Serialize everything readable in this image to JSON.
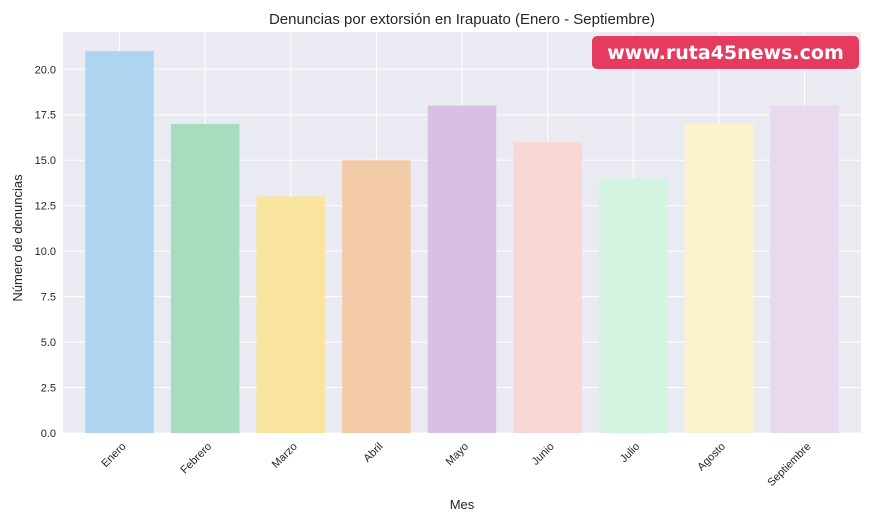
{
  "chart_data": {
    "type": "bar",
    "title": "Denuncias por extorsión en Irapuato (Enero - Septiembre)",
    "xlabel": "Mes",
    "ylabel": "Número de denuncias",
    "categories": [
      "Enero",
      "Febrero",
      "Marzo",
      "Abril",
      "Mayo",
      "Junio",
      "Julio",
      "Agosto",
      "Septiembre"
    ],
    "values": [
      21,
      17,
      13,
      15,
      18,
      16,
      14,
      17,
      18
    ],
    "colors": [
      "#aed4f0",
      "#a8dcbe",
      "#f8e49c",
      "#f3caa8",
      "#d8bfe3",
      "#f9d7d5",
      "#d4f3e1",
      "#fcf2cc",
      "#e8d9ee"
    ],
    "ylim": [
      0,
      22.05
    ],
    "yticks": [
      0,
      2.5,
      5,
      7.5,
      10,
      12.5,
      15,
      17.5,
      20
    ],
    "ytick_labels": [
      "0.0",
      "2.5",
      "5.0",
      "7.5",
      "10.0",
      "12.5",
      "15.0",
      "17.5",
      "20.0"
    ],
    "grid": true,
    "background": "#eaeaf2"
  },
  "watermark": {
    "text": "www.ruta45news.com",
    "color": "#e63b5e"
  }
}
